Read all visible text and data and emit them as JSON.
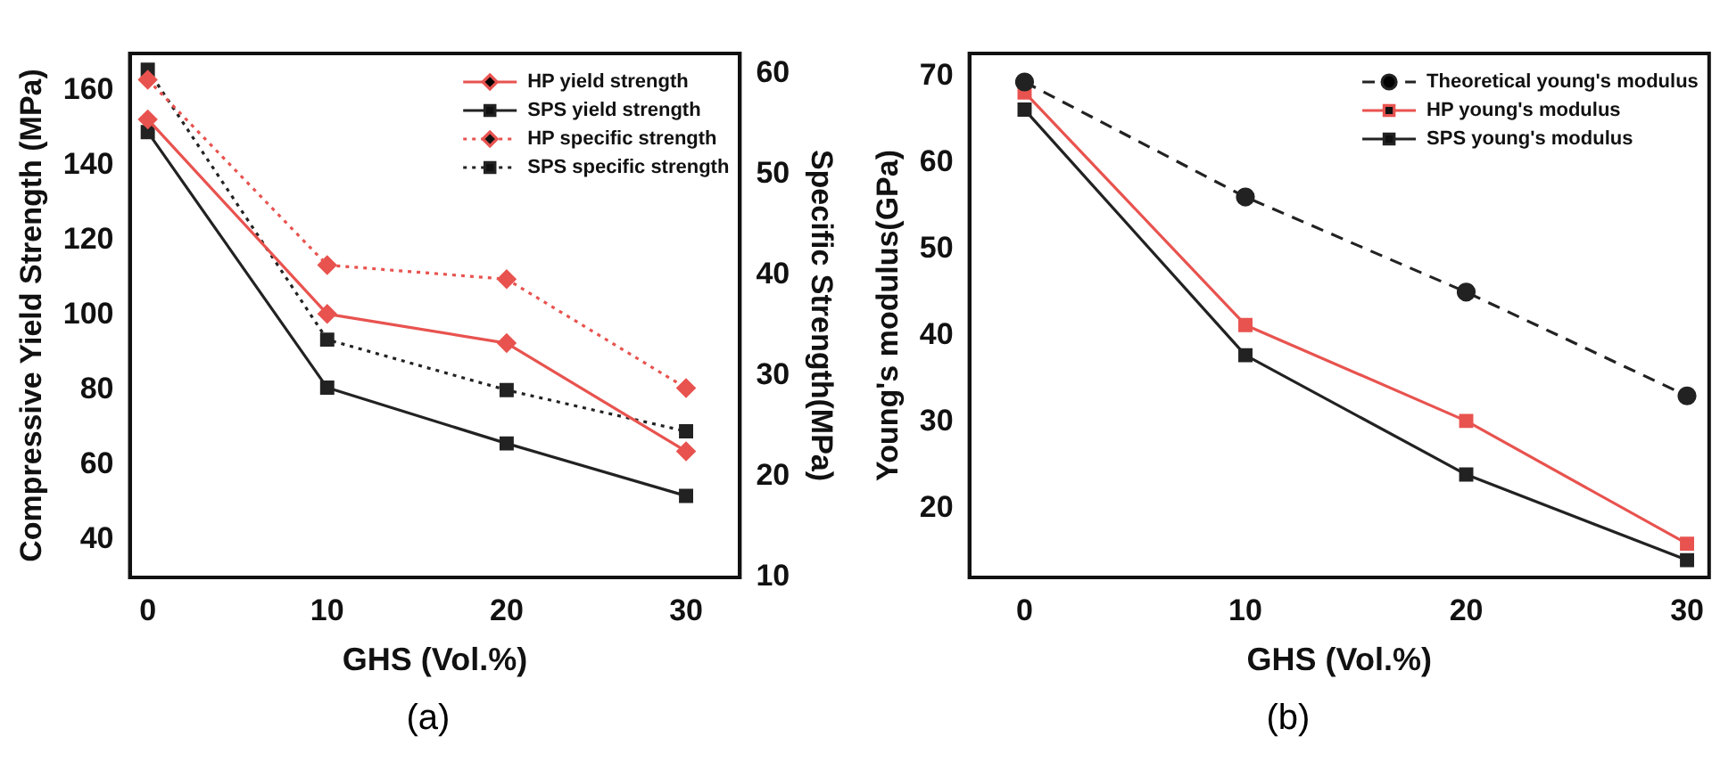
{
  "chart_data": [
    {
      "type": "line",
      "xlabel": "GHS (Vol.%)",
      "ylabel": "Compressive Yield Strength (MPa)",
      "y2label": "Specific Strength(MPa)",
      "x": [
        0,
        10,
        20,
        30
      ],
      "xlim": [
        -1,
        33
      ],
      "xticks": [
        0,
        10,
        20,
        30
      ],
      "ylim": [
        30,
        170
      ],
      "yticks": [
        40,
        60,
        80,
        100,
        120,
        140,
        160
      ],
      "y2lim": [
        10,
        62
      ],
      "y2ticks": [
        10,
        20,
        30,
        40,
        50,
        60
      ],
      "grid": false,
      "legend": "top right",
      "annotations": [
        "(a)"
      ],
      "series": [
        {
          "name": "HP yield strength",
          "color": "#e8534f",
          "marker": "diamond",
          "line_style": "solid",
          "values": [
            152.4,
            100.4,
            92.6,
            63.7
          ]
        },
        {
          "name": "SPS yield strength",
          "color": "#222222",
          "marker": "square",
          "line_style": "solid",
          "values": [
            149,
            80.7,
            65.8,
            51.8
          ]
        },
        {
          "name": "HP specific strength",
          "color": "#e8534f",
          "marker": "diamond",
          "line_style": "dotted",
          "axis": "y2",
          "values": [
            59.4,
            41.0,
            39.6,
            28.8
          ]
        },
        {
          "name": "SPS specific strength",
          "color": "#222222",
          "marker": "square",
          "line_style": "dotted",
          "axis": "y2",
          "values": [
            60.4,
            33.6,
            28.6,
            24.5
          ]
        }
      ]
    },
    {
      "type": "line",
      "xlabel": "GHS (Vol.%)",
      "ylabel": "Young's modulus(GPa)",
      "x": [
        0,
        10,
        20,
        30
      ],
      "xlim": [
        -2.5,
        31
      ],
      "xticks": [
        0,
        10,
        20,
        30
      ],
      "ylim": [
        12,
        72.6
      ],
      "yticks": [
        20,
        30,
        40,
        50,
        60,
        70
      ],
      "grid": false,
      "legend": "top right",
      "annotations": [
        "(b)"
      ],
      "series": [
        {
          "name": "Theoretical young's modulus",
          "color": "#222222",
          "marker": "circle",
          "line_style": "dashed",
          "values": [
            69.3,
            56.0,
            45.0,
            33.0
          ]
        },
        {
          "name": "HP young's modulus",
          "color": "#e8534f",
          "marker": "square",
          "line_style": "solid",
          "values": [
            68.1,
            41.2,
            30.1,
            15.9
          ]
        },
        {
          "name": "SPS young's modulus",
          "color": "#222222",
          "marker": "square",
          "line_style": "solid",
          "values": [
            66.1,
            37.7,
            23.9,
            14.0
          ]
        }
      ]
    }
  ]
}
